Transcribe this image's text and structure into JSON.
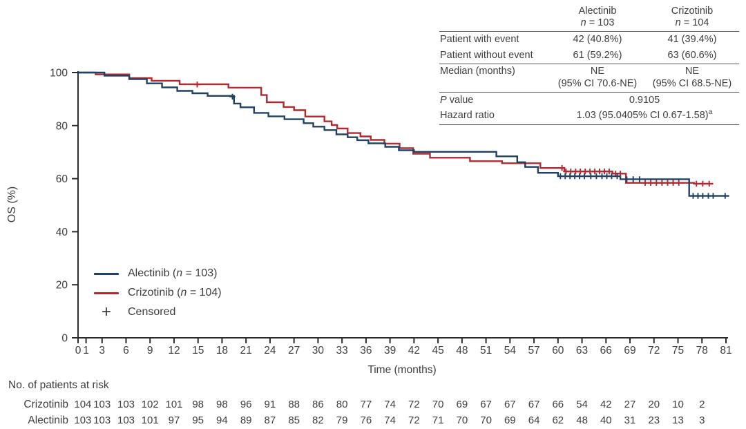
{
  "colors": {
    "alectinib": "#1F4164",
    "crizotinib": "#B1282E",
    "censor_legend": "#3A3A3A",
    "text": "#3D3D3D",
    "axis": "#2B2B2B",
    "table_rule": "#595959"
  },
  "legend": {
    "items": [
      {
        "type": "line",
        "series": "alectinib",
        "pre": "Alectinib (",
        "n": "n",
        "post": " = 103)"
      },
      {
        "type": "line",
        "series": "crizotinib",
        "pre": "Crizotinib (",
        "n": "n",
        "post": " = 104)"
      },
      {
        "type": "censor",
        "symbol": "+",
        "pre": "Censored",
        "n": "",
        "post": ""
      }
    ]
  },
  "summary_table": {
    "columns": [
      {
        "drug": "Alectinib",
        "n_italic": "n",
        "n_rest": " = 103"
      },
      {
        "drug": "Crizotinib",
        "n_italic": "n",
        "n_rest": " = 104"
      }
    ],
    "rows": [
      {
        "label": "Patient with event",
        "alectinib": "42 (40.8%)",
        "crizotinib": "41 (39.4%)"
      },
      {
        "label": "Patient without event",
        "alectinib": "61 (59.2%)",
        "crizotinib": "63 (60.6%)"
      }
    ],
    "median": {
      "label": "Median (months)",
      "alectinib_line1": "NE",
      "alectinib_line2": "(95% CI 70.6-NE)",
      "crizotinib_line1": "NE",
      "crizotinib_line2": "(95% CI 68.5-NE)"
    },
    "p_value": {
      "label_italic": "P",
      "label_rest": " value",
      "value": "0.9105"
    },
    "hazard_ratio": {
      "label": "Hazard ratio",
      "value": "1.03 (95.0405% CI 0.67-1.58)",
      "footnote": "a"
    }
  },
  "risk_table": {
    "title": "No. of patients at risk",
    "rows": [
      {
        "label": "Crizotinib",
        "values": [
          104,
          103,
          103,
          102,
          101,
          98,
          98,
          96,
          91,
          88,
          86,
          80,
          77,
          74,
          72,
          70,
          69,
          67,
          67,
          67,
          66,
          54,
          42,
          27,
          20,
          10,
          2
        ]
      },
      {
        "label": "Alectinib",
        "values": [
          103,
          103,
          103,
          101,
          97,
          95,
          94,
          89,
          87,
          85,
          82,
          79,
          76,
          74,
          72,
          71,
          70,
          70,
          69,
          64,
          62,
          48,
          40,
          31,
          23,
          13,
          3
        ]
      }
    ]
  },
  "chart_data": {
    "type": "line",
    "subtype": "kaplan_meier_step",
    "title": "",
    "xlabel": "Time (months)",
    "ylabel": "OS (%)",
    "xlim": [
      0,
      81
    ],
    "ylim": [
      0,
      100
    ],
    "grid": false,
    "legend_position": "inside-lower-left",
    "x_ticks": [
      0,
      1,
      3,
      6,
      9,
      12,
      15,
      18,
      21,
      24,
      27,
      30,
      33,
      36,
      39,
      42,
      45,
      48,
      51,
      54,
      57,
      60,
      63,
      66,
      69,
      72,
      75,
      78,
      81
    ],
    "y_ticks": [
      0,
      20,
      40,
      60,
      80,
      100
    ],
    "series": [
      {
        "name": "Alectinib (n = 103)",
        "key": "alectinib",
        "color": "#1F4164",
        "end_month": 81.4,
        "points": [
          [
            0,
            100
          ],
          [
            3.3,
            98.8
          ],
          [
            6.4,
            97.5
          ],
          [
            8.6,
            95.9
          ],
          [
            10.5,
            94.4
          ],
          [
            12.4,
            93.1
          ],
          [
            14.3,
            92.2
          ],
          [
            16.2,
            91.2
          ],
          [
            19.5,
            88.3
          ],
          [
            20.3,
            86.9
          ],
          [
            22,
            84.8
          ],
          [
            23.8,
            83.5
          ],
          [
            25.8,
            82.4
          ],
          [
            28.2,
            80.9
          ],
          [
            29.4,
            79.6
          ],
          [
            30.8,
            78.3
          ],
          [
            32.3,
            76.7
          ],
          [
            33.7,
            75.6
          ],
          [
            34.9,
            74.5
          ],
          [
            36.3,
            73.3
          ],
          [
            38.4,
            72.0
          ],
          [
            40.1,
            70.7
          ],
          [
            42,
            70.1
          ],
          [
            52.3,
            68.4
          ],
          [
            54.9,
            66.2
          ],
          [
            55.9,
            64.4
          ],
          [
            57.5,
            62.2
          ],
          [
            60,
            60.9
          ],
          [
            67.8,
            59.8
          ],
          [
            76.4,
            53.5
          ]
        ],
        "censored": [
          [
            19.3,
            90.9
          ],
          [
            60.3,
            60.9
          ],
          [
            60.9,
            60.9
          ],
          [
            61.5,
            60.9
          ],
          [
            62.1,
            60.9
          ],
          [
            62.7,
            60.9
          ],
          [
            63.3,
            60.9
          ],
          [
            64.1,
            60.9
          ],
          [
            64.8,
            60.9
          ],
          [
            65.5,
            60.9
          ],
          [
            66.1,
            60.9
          ],
          [
            66.7,
            60.9
          ],
          [
            67.4,
            60.9
          ],
          [
            68.6,
            59.8
          ],
          [
            69.4,
            59.8
          ],
          [
            70.2,
            59.8
          ],
          [
            76.9,
            53.5
          ],
          [
            77.5,
            53.5
          ],
          [
            78.1,
            53.5
          ],
          [
            78.8,
            53.5
          ],
          [
            79.4,
            53.5
          ],
          [
            80.9,
            53.5
          ]
        ]
      },
      {
        "name": "Crizotinib (n = 104)",
        "key": "crizotinib",
        "color": "#B1282E",
        "end_month": 79.4,
        "points": [
          [
            0,
            100
          ],
          [
            2.2,
            99.3
          ],
          [
            6.4,
            97.9
          ],
          [
            9.2,
            96.9
          ],
          [
            12.7,
            95.6
          ],
          [
            18.8,
            94.3
          ],
          [
            22.9,
            91.5
          ],
          [
            23.6,
            88.8
          ],
          [
            25.7,
            87.0
          ],
          [
            27.0,
            85.8
          ],
          [
            28.4,
            83.4
          ],
          [
            30.8,
            81.6
          ],
          [
            31.7,
            80.2
          ],
          [
            32.4,
            78.9
          ],
          [
            33.7,
            77.2
          ],
          [
            35.3,
            75.9
          ],
          [
            36.6,
            74.6
          ],
          [
            38.3,
            73.2
          ],
          [
            40.2,
            71.5
          ],
          [
            41.9,
            69.4
          ],
          [
            44,
            67.9
          ],
          [
            49,
            66.6
          ],
          [
            53,
            65.8
          ],
          [
            57.8,
            64.0
          ],
          [
            60.8,
            62.7
          ],
          [
            66.8,
            61.9
          ],
          [
            68.5,
            58.4
          ],
          [
            77,
            58.1
          ]
        ],
        "censored": [
          [
            14.9,
            95.5
          ],
          [
            60.5,
            64.0
          ],
          [
            61.0,
            62.7
          ],
          [
            61.6,
            62.7
          ],
          [
            62.2,
            62.7
          ],
          [
            62.8,
            62.7
          ],
          [
            63.4,
            62.7
          ],
          [
            64.0,
            62.7
          ],
          [
            64.6,
            62.7
          ],
          [
            65.2,
            62.7
          ],
          [
            65.8,
            62.7
          ],
          [
            66.4,
            62.7
          ],
          [
            67.2,
            61.9
          ],
          [
            67.8,
            61.9
          ],
          [
            70.9,
            58.4
          ],
          [
            71.6,
            58.4
          ],
          [
            72.3,
            58.4
          ],
          [
            73.0,
            58.4
          ],
          [
            73.7,
            58.4
          ],
          [
            74.4,
            58.4
          ],
          [
            75.1,
            58.4
          ],
          [
            77.3,
            58.1
          ],
          [
            78.1,
            58.1
          ],
          [
            78.9,
            58.1
          ]
        ]
      }
    ]
  }
}
